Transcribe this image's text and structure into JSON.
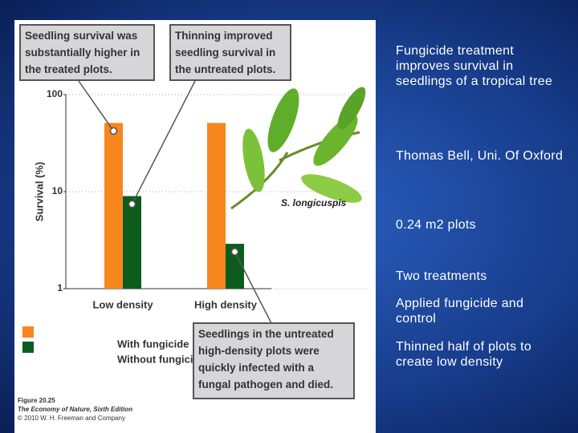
{
  "chart_data": {
    "type": "bar",
    "categories": [
      "Low density",
      "High density"
    ],
    "series": [
      {
        "name": "With fungicide",
        "color": "#f7861c",
        "values": [
          51,
          51
        ]
      },
      {
        "name": "Without fungicide",
        "color": "#0d5c1e",
        "values": [
          9,
          2.9
        ]
      }
    ],
    "y_label": "Survival (%)",
    "ylim": [
      1,
      100
    ],
    "yticks": [
      1,
      10,
      100
    ],
    "log_scale": true,
    "grid": true,
    "annotations": [
      "Seedling survival was substantially higher in the treated plots.",
      "Thinning improved seedling survival in the untreated plots.",
      "Seedlings in the untreated high-density plots were quickly infected with a fungal pathogen and died.",
      "S. longicuspis"
    ],
    "caption": [
      "Figure 20.25",
      "The Economy of Nature, Sixth Edition",
      "© 2010 W. H. Freeman and Company"
    ]
  },
  "slide": {
    "bullets": [
      "Fungicide treatment improves survival in seedlings of a tropical tree",
      "Thomas Bell, Uni. Of Oxford",
      "0.24 m2 plots",
      "Two treatments",
      "Applied fungicide and control",
      "Thinned half of plots to create low density"
    ]
  }
}
